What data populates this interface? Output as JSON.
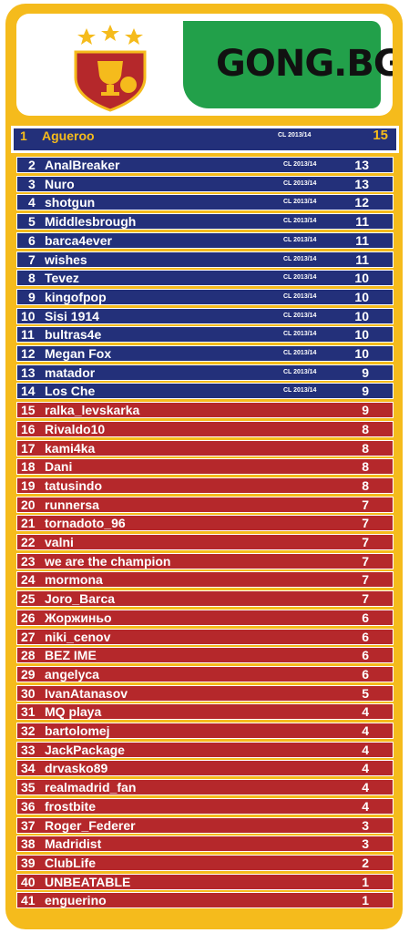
{
  "brand": {
    "logo_text": "GONG.BG"
  },
  "leaderboard": [
    {
      "rank": "1",
      "name": "Agueroo",
      "season": "CL 2013/14",
      "points": "15",
      "color": "blue"
    },
    {
      "rank": "2",
      "name": "AnalBreaker",
      "season": "CL 2013/14",
      "points": "13",
      "color": "blue"
    },
    {
      "rank": "3",
      "name": "Nuro",
      "season": "CL 2013/14",
      "points": "13",
      "color": "blue"
    },
    {
      "rank": "4",
      "name": "shotgun",
      "season": "CL 2013/14",
      "points": "12",
      "color": "blue"
    },
    {
      "rank": "5",
      "name": "Middlesbrough",
      "season": "CL 2013/14",
      "points": "11",
      "color": "blue"
    },
    {
      "rank": "6",
      "name": "barca4ever",
      "season": "CL 2013/14",
      "points": "11",
      "color": "blue"
    },
    {
      "rank": "7",
      "name": "wishes",
      "season": "CL 2013/14",
      "points": "11",
      "color": "blue"
    },
    {
      "rank": "8",
      "name": "Tevez",
      "season": "CL 2013/14",
      "points": "10",
      "color": "blue"
    },
    {
      "rank": "9",
      "name": "kingofpop",
      "season": "CL 2013/14",
      "points": "10",
      "color": "blue"
    },
    {
      "rank": "10",
      "name": "Sisi 1914",
      "season": "CL 2013/14",
      "points": "10",
      "color": "blue"
    },
    {
      "rank": "11",
      "name": "bultras4e",
      "season": "CL 2013/14",
      "points": "10",
      "color": "blue"
    },
    {
      "rank": "12",
      "name": "Megan Fox",
      "season": "CL 2013/14",
      "points": "10",
      "color": "blue"
    },
    {
      "rank": "13",
      "name": "matador",
      "season": "CL 2013/14",
      "points": "9",
      "color": "blue"
    },
    {
      "rank": "14",
      "name": "Los Che",
      "season": "CL 2013/14",
      "points": "9",
      "color": "blue"
    },
    {
      "rank": "15",
      "name": "ralka_levskarka",
      "season": "",
      "points": "9",
      "color": "red"
    },
    {
      "rank": "16",
      "name": "Rivaldo10",
      "season": "",
      "points": "8",
      "color": "red"
    },
    {
      "rank": "17",
      "name": "kami4ka",
      "season": "",
      "points": "8",
      "color": "red"
    },
    {
      "rank": "18",
      "name": "Dani",
      "season": "",
      "points": "8",
      "color": "red"
    },
    {
      "rank": "19",
      "name": "tatusindo",
      "season": "",
      "points": "8",
      "color": "red"
    },
    {
      "rank": "20",
      "name": "runnersa",
      "season": "",
      "points": "7",
      "color": "red"
    },
    {
      "rank": "21",
      "name": "tornadoto_96",
      "season": "",
      "points": "7",
      "color": "red"
    },
    {
      "rank": "22",
      "name": "valni",
      "season": "",
      "points": "7",
      "color": "red"
    },
    {
      "rank": "23",
      "name": "we are the champion",
      "season": "",
      "points": "7",
      "color": "red"
    },
    {
      "rank": "24",
      "name": "mormona",
      "season": "",
      "points": "7",
      "color": "red"
    },
    {
      "rank": "25",
      "name": "Joro_Barca",
      "season": "",
      "points": "7",
      "color": "red"
    },
    {
      "rank": "26",
      "name": "Жоржиньо",
      "season": "",
      "points": "6",
      "color": "red"
    },
    {
      "rank": "27",
      "name": "niki_cenov",
      "season": "",
      "points": "6",
      "color": "red"
    },
    {
      "rank": "28",
      "name": "BEZ IME",
      "season": "",
      "points": "6",
      "color": "red"
    },
    {
      "rank": "29",
      "name": "angelyca",
      "season": "",
      "points": "6",
      "color": "red"
    },
    {
      "rank": "30",
      "name": "IvanAtanasov",
      "season": "",
      "points": "5",
      "color": "red"
    },
    {
      "rank": "31",
      "name": "MQ playa",
      "season": "",
      "points": "4",
      "color": "red"
    },
    {
      "rank": "32",
      "name": "bartolomej",
      "season": "",
      "points": "4",
      "color": "red"
    },
    {
      "rank": "33",
      "name": "JackPackage",
      "season": "",
      "points": "4",
      "color": "red"
    },
    {
      "rank": "34",
      "name": "drvasko89",
      "season": "",
      "points": "4",
      "color": "red"
    },
    {
      "rank": "35",
      "name": "realmadrid_fan",
      "season": "",
      "points": "4",
      "color": "red"
    },
    {
      "rank": "36",
      "name": "frostbite",
      "season": "",
      "points": "4",
      "color": "red"
    },
    {
      "rank": "37",
      "name": "Roger_Federer",
      "season": "",
      "points": "3",
      "color": "red"
    },
    {
      "rank": "38",
      "name": "Madridist",
      "season": "",
      "points": "3",
      "color": "red"
    },
    {
      "rank": "39",
      "name": "ClubLife",
      "season": "",
      "points": "2",
      "color": "red"
    },
    {
      "rank": "40",
      "name": "UNBEATABLE",
      "season": "",
      "points": "1",
      "color": "red"
    },
    {
      "rank": "41",
      "name": "enguerino",
      "season": "",
      "points": "1",
      "color": "red"
    }
  ]
}
